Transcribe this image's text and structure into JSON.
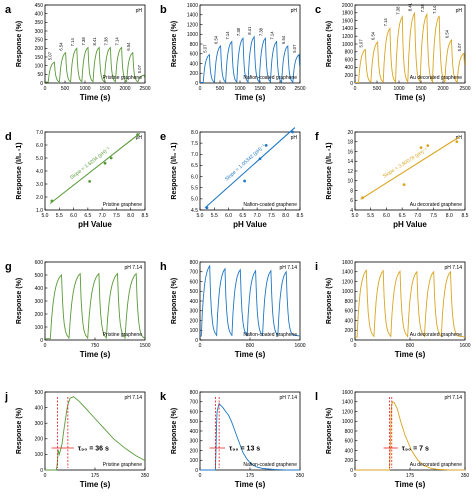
{
  "figure": {
    "colors": {
      "green": "#5a9a3a",
      "blue": "#1f77c4",
      "gold": "#d9a520",
      "axis": "#000000",
      "red": "#e41a1c"
    }
  },
  "chart_data": [
    {
      "id": "a",
      "panel_label": "a",
      "type": "line",
      "series_color": "green",
      "corner_label": "pH",
      "condition_label": "Pristine graphene",
      "xlabel": "Time (s)",
      "ylabel": "Response (%)",
      "xlim": [
        0,
        2500
      ],
      "ylim": [
        0,
        450
      ],
      "xticks": [
        "0",
        "500",
        "1000",
        "1500",
        "2000",
        "2500"
      ],
      "yticks": [
        "0",
        "50",
        "100",
        "150",
        "200",
        "250",
        "300",
        "350",
        "400",
        "450"
      ],
      "pulse": {
        "t0": 80,
        "period": 280,
        "widthFrac": 0.55,
        "base": 5
      },
      "peak_labels": [
        "5.07",
        "6.54",
        "7.14",
        "7.38",
        "8.41",
        "7.38",
        "7.14",
        "6.54",
        "5.07"
      ],
      "peaks": [
        120,
        175,
        200,
        205,
        205,
        205,
        205,
        175,
        45
      ]
    },
    {
      "id": "b",
      "panel_label": "b",
      "type": "line",
      "series_color": "blue",
      "corner_label": "pH",
      "condition_label": "Nafion-coated graphene",
      "xlabel": "Time (s)",
      "ylabel": "Response (%)",
      "xlim": [
        0,
        2500
      ],
      "ylim": [
        0,
        1600
      ],
      "xticks": [
        "0",
        "500",
        "1000",
        "1500",
        "2000",
        "2500"
      ],
      "yticks": [
        "0",
        "200",
        "400",
        "600",
        "800",
        "1000",
        "1200",
        "1400",
        "1600"
      ],
      "pulse": {
        "t0": 80,
        "period": 280,
        "widthFrac": 0.55,
        "base": 10
      },
      "peak_labels": [
        "5.07",
        "6.54",
        "7.14",
        "7.38",
        "8.41",
        "7.38",
        "7.14",
        "6.54",
        "5.07"
      ],
      "peaks": [
        580,
        760,
        850,
        920,
        950,
        920,
        850,
        760,
        580
      ]
    },
    {
      "id": "c",
      "panel_label": "c",
      "type": "line",
      "series_color": "gold",
      "corner_label": "pH",
      "condition_label": "Au decorated graphene",
      "xlabel": "Time (s)",
      "ylabel": "Response (%)",
      "xlim": [
        0,
        2500
      ],
      "ylim": [
        0,
        2000
      ],
      "xticks": [
        "0",
        "500",
        "1000",
        "1500",
        "2000",
        "2500"
      ],
      "yticks": [
        "0",
        "200",
        "400",
        "600",
        "800",
        "1000",
        "1200",
        "1400",
        "1600",
        "1800",
        "2000"
      ],
      "pulse": {
        "t0": 80,
        "period": 280,
        "widthFrac": 0.55,
        "base": 10
      },
      "peak_labels": [
        "5.07",
        "6.54",
        "7.14",
        "7.38",
        "8.41",
        "7.38",
        "7.14",
        "6.54",
        "5.07"
      ],
      "peaks": [
        860,
        1050,
        1400,
        1700,
        1790,
        1760,
        1720,
        1100,
        760
      ]
    },
    {
      "id": "d",
      "panel_label": "d",
      "type": "scatter",
      "series_color": "green",
      "corner_label": "pH",
      "condition_label": "Pristine graphene",
      "xlabel": "pH Value",
      "ylabel": "Response (I/I₀ -1)",
      "xlim": [
        4.8,
        8.7
      ],
      "ylim": [
        1.0,
        7.0
      ],
      "xticks": [
        "5.0",
        "5.5",
        "6.0",
        "6.5",
        "7.0",
        "7.5",
        "8.0",
        "8.5"
      ],
      "yticks": [
        "1.0",
        "2.0",
        "3.0",
        "4.0",
        "5.0",
        "6.0",
        "7.0"
      ],
      "x": [
        5.07,
        6.54,
        7.14,
        7.38,
        8.41
      ],
      "y": [
        1.7,
        3.2,
        4.6,
        5.0,
        6.8
      ],
      "fit": {
        "x": [
          5.0,
          8.5
        ],
        "y": [
          1.5,
          6.9
        ]
      },
      "slope_label": "Slope = 1.6204 (pH)⁻¹"
    },
    {
      "id": "e",
      "panel_label": "e",
      "type": "scatter",
      "series_color": "blue",
      "corner_label": "pH",
      "condition_label": "Nafion-coated graphene",
      "xlabel": "pH Value",
      "ylabel": "Response (I/I₀ -1)",
      "xlim": [
        4.8,
        8.7
      ],
      "ylim": [
        4.5,
        8.0
      ],
      "xticks": [
        "5.0",
        "5.5",
        "6.0",
        "6.5",
        "7.0",
        "7.5",
        "8.0",
        "8.5"
      ],
      "yticks": [
        "4.5",
        "5.0",
        "5.5",
        "6.0",
        "6.5",
        "7.0",
        "7.5",
        "8.0"
      ],
      "x": [
        5.07,
        6.54,
        7.14,
        7.38,
        8.41
      ],
      "y": [
        4.6,
        5.8,
        6.8,
        7.4,
        8.0
      ],
      "fit": {
        "x": [
          5.0,
          8.5
        ],
        "y": [
          4.6,
          8.2
        ]
      },
      "slope_label": "Slope = 1.05342 (pH)⁻¹"
    },
    {
      "id": "f",
      "panel_label": "f",
      "type": "scatter",
      "series_color": "gold",
      "corner_label": "pH",
      "condition_label": "Au decorated graphene",
      "xlabel": "pH Value",
      "ylabel": "Response (I/I₀ -1)",
      "xlim": [
        4.8,
        8.7
      ],
      "ylim": [
        4,
        20
      ],
      "xticks": [
        "5.0",
        "5.5",
        "6.0",
        "6.5",
        "7.0",
        "7.5",
        "8.0",
        "8.5"
      ],
      "yticks": [
        "4",
        "6",
        "8",
        "10",
        "12",
        "14",
        "16",
        "18",
        "20"
      ],
      "x": [
        5.07,
        6.54,
        7.14,
        7.38,
        8.41
      ],
      "y": [
        6.5,
        9.2,
        16.8,
        17.2,
        18.0
      ],
      "fit": {
        "x": [
          5.0,
          8.5
        ],
        "y": [
          6.2,
          19.0
        ]
      },
      "slope_label": "Slope = 3.90078 (pH)⁻¹"
    },
    {
      "id": "g",
      "panel_label": "g",
      "type": "line",
      "series_color": "green",
      "corner_label": "pH 7.14",
      "condition_label": "Pristine graphene",
      "xlabel": "Time (s)",
      "ylabel": "Response (%)",
      "xlim": [
        0,
        1500
      ],
      "ylim": [
        0,
        600
      ],
      "xticks": [
        "0",
        "750",
        "1500"
      ],
      "yticks": [
        "0",
        "100",
        "200",
        "300",
        "400",
        "500",
        "600"
      ],
      "pulse": {
        "t0": 80,
        "period": 280,
        "widthFrac": 0.6,
        "base": 10
      },
      "peaks": [
        500,
        510,
        510,
        510,
        510
      ]
    },
    {
      "id": "h",
      "panel_label": "h",
      "type": "line",
      "series_color": "blue",
      "corner_label": "pH 7.14",
      "condition_label": "Nafion-coated graphene",
      "xlabel": "Time (s)",
      "ylabel": "Response (%)",
      "xlim": [
        0,
        1600
      ],
      "ylim": [
        0,
        800
      ],
      "xticks": [
        "0",
        "800",
        "1600"
      ],
      "yticks": [
        "0",
        "100",
        "200",
        "300",
        "400",
        "500",
        "600",
        "700",
        "800"
      ],
      "pulse": {
        "t0": 20,
        "period": 245,
        "widthFrac": 0.55,
        "base": 40
      },
      "peaks": [
        760,
        730,
        720,
        710,
        710,
        700
      ]
    },
    {
      "id": "i",
      "panel_label": "i",
      "type": "line",
      "series_color": "gold",
      "corner_label": "pH 7.14",
      "condition_label": "Au decorated graphene",
      "xlabel": "Time (s)",
      "ylabel": "Response (%)",
      "xlim": [
        0,
        1600
      ],
      "ylim": [
        0,
        1600
      ],
      "xticks": [
        "0",
        "800",
        "1600"
      ],
      "yticks": [
        "0",
        "200",
        "400",
        "600",
        "800",
        "1000",
        "1200",
        "1400",
        "1600"
      ],
      "pulse": {
        "t0": 30,
        "period": 245,
        "widthFrac": 0.55,
        "base": 60
      },
      "peaks": [
        1430,
        1420,
        1410,
        1400,
        1400,
        1400
      ]
    },
    {
      "id": "j",
      "panel_label": "j",
      "type": "line",
      "series_color": "green",
      "corner_label": "pH 7.14",
      "condition_label": "Pristine graphene",
      "xlabel": "Time (s)",
      "ylabel": "Response (%)",
      "xlim": [
        0,
        350
      ],
      "ylim": [
        0,
        500
      ],
      "xticks": [
        "0",
        "175",
        "350"
      ],
      "yticks": [
        "0",
        "100",
        "200",
        "300",
        "400",
        "500"
      ],
      "curve": {
        "x": [
          0,
          20,
          40,
          44,
          46,
          50,
          56,
          60,
          64,
          68,
          72,
          76,
          80,
          88,
          100,
          120,
          140,
          170,
          200,
          240,
          280,
          320,
          350
        ],
        "y": [
          0,
          0,
          0,
          60,
          130,
          100,
          140,
          170,
          230,
          280,
          330,
          380,
          420,
          460,
          470,
          440,
          400,
          340,
          280,
          200,
          140,
          90,
          60
        ]
      },
      "marker_x": [
        44,
        80
      ],
      "tau_label": "τ₉₀ = 36 s"
    },
    {
      "id": "k",
      "panel_label": "k",
      "type": "line",
      "series_color": "blue",
      "corner_label": "pH 7.14",
      "condition_label": "Nafion-coated graphene",
      "xlabel": "Time (s)",
      "ylabel": "Response (%)",
      "xlim": [
        0,
        350
      ],
      "ylim": [
        0,
        800
      ],
      "xticks": [
        "0",
        "175",
        "350"
      ],
      "yticks": [
        "0",
        "100",
        "200",
        "300",
        "400",
        "500",
        "600",
        "700",
        "800"
      ],
      "curve": {
        "x": [
          0,
          30,
          54,
          56,
          58,
          60,
          64,
          67,
          70,
          80,
          90,
          100,
          110,
          120,
          130,
          140,
          150,
          165,
          180,
          200,
          220,
          260,
          300,
          350
        ],
        "y": [
          0,
          0,
          0,
          200,
          480,
          600,
          650,
          680,
          670,
          640,
          600,
          560,
          500,
          420,
          340,
          260,
          180,
          110,
          60,
          30,
          15,
          5,
          0,
          0
        ]
      },
      "marker_x": [
        54,
        67
      ],
      "tau_label": "τ₉₀ = 13 s"
    },
    {
      "id": "l",
      "panel_label": "l",
      "type": "line",
      "series_color": "gold",
      "corner_label": "pH 7.14",
      "condition_label": "Au decorated graphene",
      "xlabel": "Time (s)",
      "ylabel": "Response (%)",
      "xlim": [
        0,
        350
      ],
      "ylim": [
        0,
        1600
      ],
      "xticks": [
        "0",
        "175",
        "350"
      ],
      "yticks": [
        "0",
        "200",
        "400",
        "600",
        "800",
        "1000",
        "1200",
        "1400",
        "1600"
      ],
      "curve": {
        "x": [
          0,
          60,
          110,
          113,
          115,
          117,
          120,
          125,
          135,
          145,
          160,
          180,
          200,
          220,
          240,
          260,
          300,
          350
        ],
        "y": [
          0,
          0,
          0,
          600,
          1200,
          1350,
          1400,
          1380,
          1250,
          1000,
          700,
          400,
          200,
          90,
          40,
          15,
          0,
          0
        ]
      },
      "marker_x": [
        110,
        117
      ],
      "tau_label": "τ₉₀ = 7 s"
    }
  ]
}
